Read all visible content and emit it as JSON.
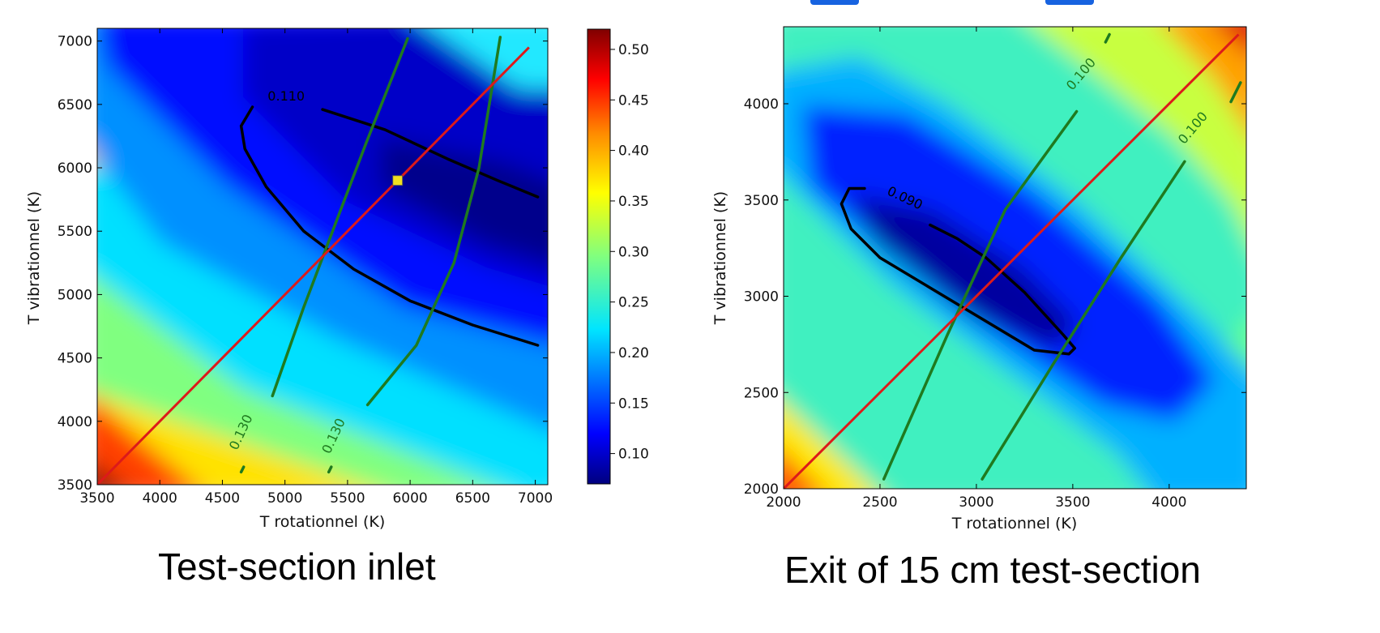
{
  "chart_data": [
    {
      "type": "heatmap",
      "panel": "left",
      "xlabel": "T rotationnel (K)",
      "ylabel": "T vibrationnel (K)",
      "xlim": [
        3500,
        7100
      ],
      "ylim": [
        3500,
        7100
      ],
      "xticks": [
        3500,
        4000,
        4500,
        5000,
        5500,
        6000,
        6500,
        7000
      ],
      "yticks": [
        3500,
        4000,
        4500,
        5000,
        5500,
        6000,
        6500,
        7000
      ],
      "colorbar": {
        "range": [
          0.07,
          0.52
        ],
        "ticks": [
          0.1,
          0.15,
          0.2,
          0.25,
          0.3,
          0.35,
          0.4,
          0.45,
          0.5
        ],
        "colormap": "jet"
      },
      "field_minimum": {
        "x": 6900,
        "y": 5100,
        "value": 0.075
      },
      "contours": [
        {
          "level": "0.110",
          "color": "#000000",
          "points": [
            [
              4740,
              6480
            ],
            [
              4650,
              6330
            ],
            [
              4680,
              6150
            ],
            [
              4850,
              5850
            ],
            [
              5150,
              5500
            ],
            [
              5550,
              5200
            ],
            [
              6000,
              4950
            ],
            [
              6500,
              4760
            ],
            [
              7020,
              4600
            ],
            null,
            [
              5300,
              6460
            ],
            [
              5800,
              6300
            ],
            [
              6300,
              6070
            ],
            [
              6700,
              5900
            ],
            [
              7020,
              5770
            ]
          ]
        },
        {
          "level": "0.130",
          "color": "#1f7a1f",
          "points": [
            [
              4900,
              4200
            ],
            [
              5150,
              4900
            ],
            [
              5400,
              5550
            ],
            [
              5650,
              6200
            ],
            [
              5980,
              7020
            ],
            null,
            [
              4650,
              3600
            ],
            [
              4670,
              3640
            ]
          ]
        },
        {
          "level": "0.130",
          "color": "#1f7a1f",
          "points": [
            [
              5660,
              4130
            ],
            [
              6050,
              4600
            ],
            [
              6350,
              5250
            ],
            [
              6550,
              6000
            ],
            [
              6720,
              7030
            ],
            null,
            [
              5350,
              3600
            ],
            [
              5370,
              3640
            ]
          ]
        }
      ],
      "line": {
        "color": "#dd1a1a",
        "points": [
          [
            3500,
            3500
          ],
          [
            6950,
            6950
          ]
        ]
      },
      "marker": {
        "x": 5900,
        "y": 5900,
        "color": "#f0e020"
      },
      "contour_labels": [
        {
          "text": "0.110",
          "x": 5010,
          "y": 6530
        },
        {
          "text": "0.130",
          "x": 4680,
          "y": 3900
        },
        {
          "text": "0.130",
          "x": 5420,
          "y": 3870
        }
      ]
    },
    {
      "type": "heatmap",
      "panel": "right",
      "xlabel": "T rotationnel (K)",
      "ylabel": "T vibrationnel (K)",
      "xlim": [
        2000,
        4400
      ],
      "ylim": [
        2000,
        4400
      ],
      "xticks": [
        2000,
        2500,
        3000,
        3500,
        4000
      ],
      "yticks": [
        2000,
        2500,
        3000,
        3500,
        4000
      ],
      "colorbar": {
        "range": [
          0.07,
          0.52
        ],
        "colormap": "jet"
      },
      "field_minimum": {
        "x": 3050,
        "y": 3100,
        "value": 0.08
      },
      "contours": [
        {
          "level": "0.090",
          "color": "#000000",
          "points": [
            [
              2420,
              3560
            ],
            [
              2340,
              3560
            ],
            [
              2300,
              3480
            ],
            [
              2350,
              3350
            ],
            [
              2500,
              3200
            ],
            [
              2750,
              3050
            ],
            [
              3050,
              2870
            ],
            [
              3300,
              2720
            ],
            [
              3480,
              2700
            ],
            [
              3510,
              2730
            ],
            [
              3450,
              2800
            ],
            [
              3250,
              3020
            ],
            [
              3050,
              3200
            ],
            [
              2900,
              3300
            ],
            [
              2760,
              3370
            ]
          ]
        },
        {
          "level": "0.100",
          "color": "#1f7a1f",
          "points": [
            [
              2520,
              2050
            ],
            [
              2850,
              2800
            ],
            [
              3150,
              3450
            ],
            [
              3520,
              3960
            ],
            null,
            [
              3670,
              4320
            ],
            [
              3690,
              4360
            ]
          ]
        },
        {
          "level": "0.100",
          "color": "#1f7a1f",
          "points": [
            [
              3030,
              2050
            ],
            [
              3400,
              2650
            ],
            [
              3750,
              3200
            ],
            [
              4080,
              3700
            ],
            null,
            [
              4320,
              4010
            ],
            [
              4370,
              4110
            ]
          ]
        }
      ],
      "line": {
        "color": "#dd1a1a",
        "points": [
          [
            2000,
            2000
          ],
          [
            4360,
            4360
          ]
        ]
      },
      "contour_labels": [
        {
          "text": "0.090",
          "x": 2620,
          "y": 3490
        },
        {
          "text": "0.100",
          "x": 3560,
          "y": 4140
        },
        {
          "text": "0.100",
          "x": 4140,
          "y": 3860
        }
      ]
    }
  ],
  "captions": {
    "left": "Test-section inlet",
    "right": "Exit of 15 cm test-section"
  }
}
